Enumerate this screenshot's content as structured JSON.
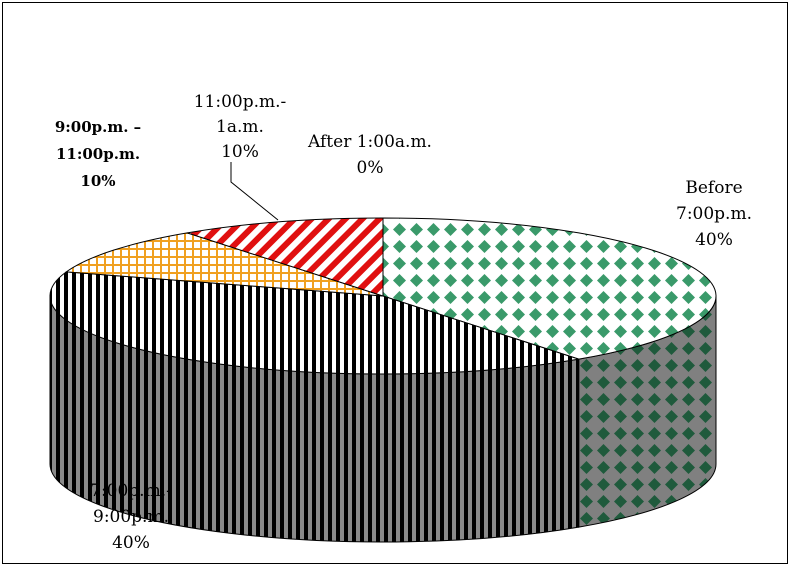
{
  "chart_data": {
    "type": "pie",
    "three_d": true,
    "title": "",
    "categories": [
      "Before 7:00p.m.",
      "7:00p.m.-9:00p.m.",
      "9:00p.m. – 11:00p.m.",
      "11:00p.m.-1a.m.",
      "After 1:00a.m."
    ],
    "values": [
      40,
      40,
      10,
      10,
      0
    ],
    "unit": "%",
    "legend": "none",
    "labels": [
      {
        "lines": [
          "Before",
          "7:00p.m.",
          "40%"
        ]
      },
      {
        "lines": [
          "7:00p.m.-",
          "9:00p.m.",
          "40%"
        ]
      },
      {
        "lines": [
          "9:00p.m. –",
          "11:00p.m.",
          "10%"
        ]
      },
      {
        "lines": [
          "11:00p.m.-",
          "1a.m.",
          "10%"
        ]
      },
      {
        "lines": [
          "After 1:00a.m.",
          "0%"
        ]
      }
    ],
    "colors": {
      "before7": "#3a9a6a",
      "before7_side": "#1f5a3c",
      "seven_nine": "#000000",
      "nine_eleven": "#f0a020",
      "eleven_one": "#e01010"
    }
  }
}
